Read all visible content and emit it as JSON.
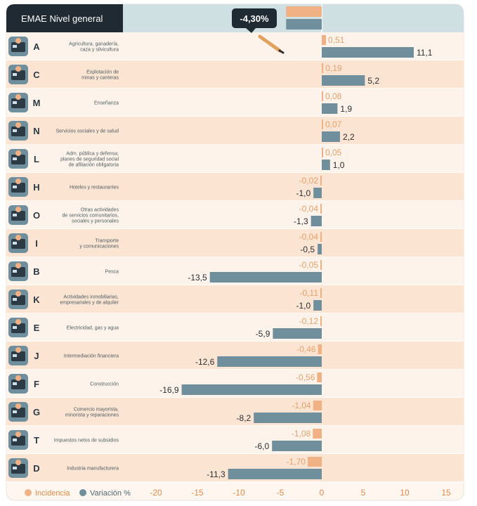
{
  "chart_data": {
    "type": "bar",
    "header_label": "EMAE Nivel general",
    "total": {
      "incidence_label": "-4,30%",
      "incidence": -4.3
    },
    "colors": {
      "incidence": "#f0b184",
      "variation": "#6e8f9b",
      "row_light": "#fdf3ea",
      "row_dark": "#fbe4d2",
      "header": "#1f2a33",
      "top_band": "#cfe0e3",
      "axis_text": "#e08a4a"
    },
    "xlim": [
      -20,
      15
    ],
    "xticks": [
      "-20",
      "-15",
      "-10",
      "-5",
      "0",
      "5",
      "10",
      "15"
    ],
    "categories": [
      {
        "letter": "A",
        "lines": [
          "Agricultura, ganadería,",
          "caza y silvicultura"
        ],
        "icon": "tractor-icon",
        "incidence": 0.51,
        "incidence_label": "0,51",
        "variation": 11.1,
        "variation_label": "11,1"
      },
      {
        "letter": "C",
        "lines": [
          "Explotación de",
          "minas y canteras"
        ],
        "icon": "mining-icon",
        "incidence": 0.19,
        "incidence_label": "0,19",
        "variation": 5.2,
        "variation_label": "5,2"
      },
      {
        "letter": "M",
        "lines": [
          "Enseñanza"
        ],
        "icon": "school-icon",
        "incidence": 0.08,
        "incidence_label": "0,08",
        "variation": 1.9,
        "variation_label": "1,9"
      },
      {
        "letter": "N",
        "lines": [
          "Servicios sociales y de salud"
        ],
        "icon": "health-icon",
        "incidence": 0.07,
        "incidence_label": "0,07",
        "variation": 2.2,
        "variation_label": "2,2"
      },
      {
        "letter": "L",
        "lines": [
          "Adm. pública y defensa;",
          "planes de seguridad social",
          "de afiliación obligatoria"
        ],
        "icon": "government-icon",
        "incidence": 0.05,
        "incidence_label": "0,05",
        "variation": 1.0,
        "variation_label": "1,0"
      },
      {
        "letter": "H",
        "lines": [
          "Hoteles y restaurantes"
        ],
        "icon": "hotel-icon",
        "incidence": -0.02,
        "incidence_label": "-0,02",
        "variation": -1.0,
        "variation_label": "-1,0"
      },
      {
        "letter": "O",
        "lines": [
          "Otras actividades",
          "de servicios comunitarios,",
          "sociales y personales"
        ],
        "icon": "community-icon",
        "incidence": -0.04,
        "incidence_label": "-0,04",
        "variation": -1.3,
        "variation_label": "-1,3"
      },
      {
        "letter": "I",
        "lines": [
          "Transporte",
          "y comunicaciones"
        ],
        "icon": "transport-icon",
        "incidence": -0.04,
        "incidence_label": "-0,04",
        "variation": -0.5,
        "variation_label": "-0,5"
      },
      {
        "letter": "B",
        "lines": [
          "Pesca"
        ],
        "icon": "bank-icon",
        "incidence": -0.05,
        "incidence_label": "-0,05",
        "variation": -13.5,
        "variation_label": "-13,5"
      },
      {
        "letter": "K",
        "lines": [
          "Actividades inmobiliarias,",
          "empresariales y de alquiler"
        ],
        "icon": "oil-pump-icon",
        "incidence": -0.11,
        "incidence_label": "-0,11",
        "variation": -1.0,
        "variation_label": "-1,0"
      },
      {
        "letter": "E",
        "lines": [
          "Electricidad, gas y agua"
        ],
        "icon": "utilities-icon",
        "incidence": -0.12,
        "incidence_label": "-0,12",
        "variation": -5.9,
        "variation_label": "-5,9"
      },
      {
        "letter": "J",
        "lines": [
          "Intermediación financiera"
        ],
        "icon": "gears-icon",
        "incidence": -0.46,
        "incidence_label": "-0,46",
        "variation": -12.6,
        "variation_label": "-12,6"
      },
      {
        "letter": "F",
        "lines": [
          "Construcción"
        ],
        "icon": "construction-icon",
        "incidence": -0.56,
        "incidence_label": "-0,56",
        "variation": -16.9,
        "variation_label": "-16,9"
      },
      {
        "letter": "G",
        "lines": [
          "Comercio mayorista,",
          "minorista y reparaciones"
        ],
        "icon": "commerce-icon",
        "incidence": -1.04,
        "incidence_label": "-1,04",
        "variation": -8.2,
        "variation_label": "-8,2"
      },
      {
        "letter": "T",
        "lines": [
          "Impuestos netos de subsidios"
        ],
        "icon": "taxes-icon",
        "incidence": -1.08,
        "incidence_label": "-1,08",
        "variation": -6.0,
        "variation_label": "-6,0"
      },
      {
        "letter": "D",
        "lines": [
          "Industria manufacturera"
        ],
        "icon": "factory-icon",
        "incidence": -1.7,
        "incidence_label": "-1,70",
        "variation": -11.3,
        "variation_label": "-11,3"
      }
    ],
    "legend": [
      {
        "name": "Incidencia",
        "color": "#f0b184"
      },
      {
        "name": "Variación %",
        "color": "#6e8f9b"
      }
    ]
  }
}
